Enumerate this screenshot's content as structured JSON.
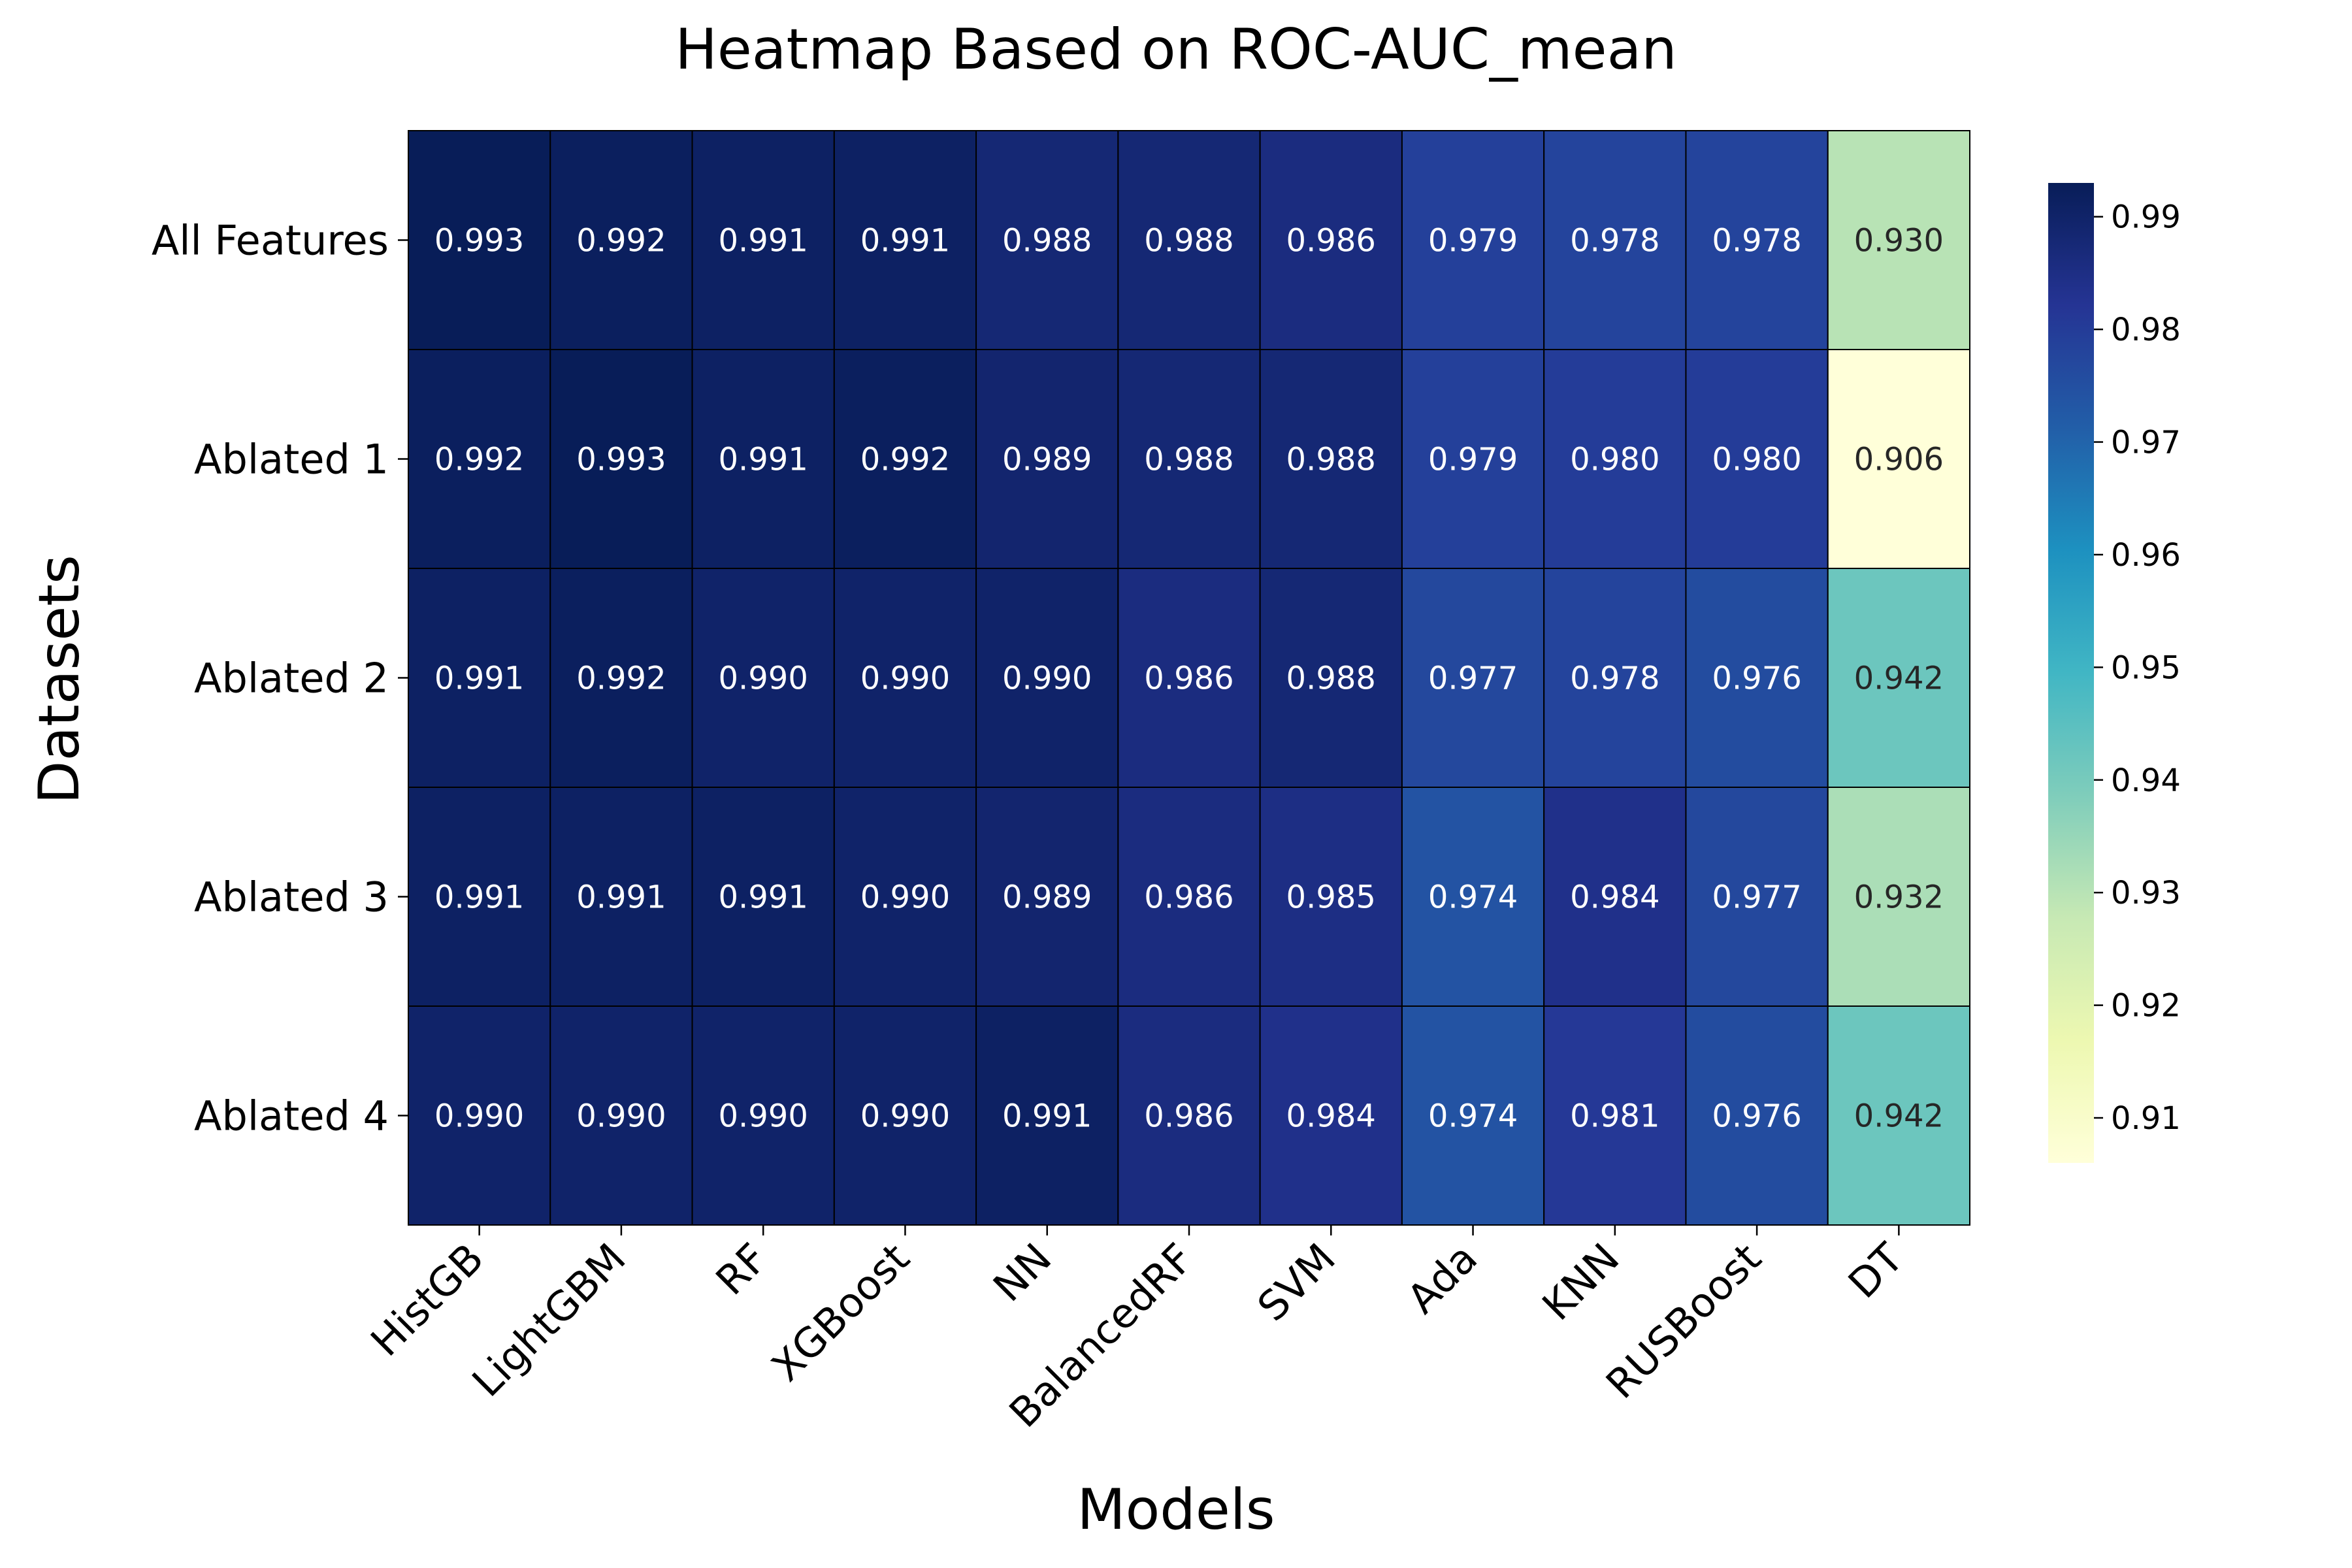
{
  "chart_data": {
    "type": "heatmap",
    "title": "Heatmap Based on ROC-AUC_mean",
    "xlabel": "Models",
    "ylabel": "Datasets",
    "x_categories": [
      "HistGB",
      "LightGBM",
      "RF",
      "XGBoost",
      "NN",
      "BalancedRF",
      "SVM",
      "Ada",
      "KNN",
      "RUSBoost",
      "DT"
    ],
    "y_categories": [
      "All Features",
      "Ablated 1",
      "Ablated 2",
      "Ablated 3",
      "Ablated 4"
    ],
    "values": [
      [
        0.993,
        0.992,
        0.991,
        0.991,
        0.988,
        0.988,
        0.986,
        0.979,
        0.978,
        0.978,
        0.93
      ],
      [
        0.992,
        0.993,
        0.991,
        0.992,
        0.989,
        0.988,
        0.988,
        0.979,
        0.98,
        0.98,
        0.906
      ],
      [
        0.991,
        0.992,
        0.99,
        0.99,
        0.99,
        0.986,
        0.988,
        0.977,
        0.978,
        0.976,
        0.942
      ],
      [
        0.991,
        0.991,
        0.991,
        0.99,
        0.989,
        0.986,
        0.985,
        0.974,
        0.984,
        0.977,
        0.932
      ],
      [
        0.99,
        0.99,
        0.99,
        0.99,
        0.991,
        0.986,
        0.984,
        0.974,
        0.981,
        0.976,
        0.942
      ]
    ],
    "value_format": "3 decimals",
    "colormap": "YlGnBu",
    "colormap_stops": [
      "#ffffd9",
      "#edf8b1",
      "#c7e9b4",
      "#7fcdbb",
      "#41b6c4",
      "#1d91c0",
      "#225ea8",
      "#253494",
      "#081d58"
    ],
    "colorbar": {
      "vmin": 0.906,
      "vmax": 0.993,
      "ticks": [
        "0.91",
        "0.92",
        "0.93",
        "0.94",
        "0.95",
        "0.96",
        "0.97",
        "0.98",
        "0.99"
      ]
    },
    "cell_border_color": "#000000"
  }
}
